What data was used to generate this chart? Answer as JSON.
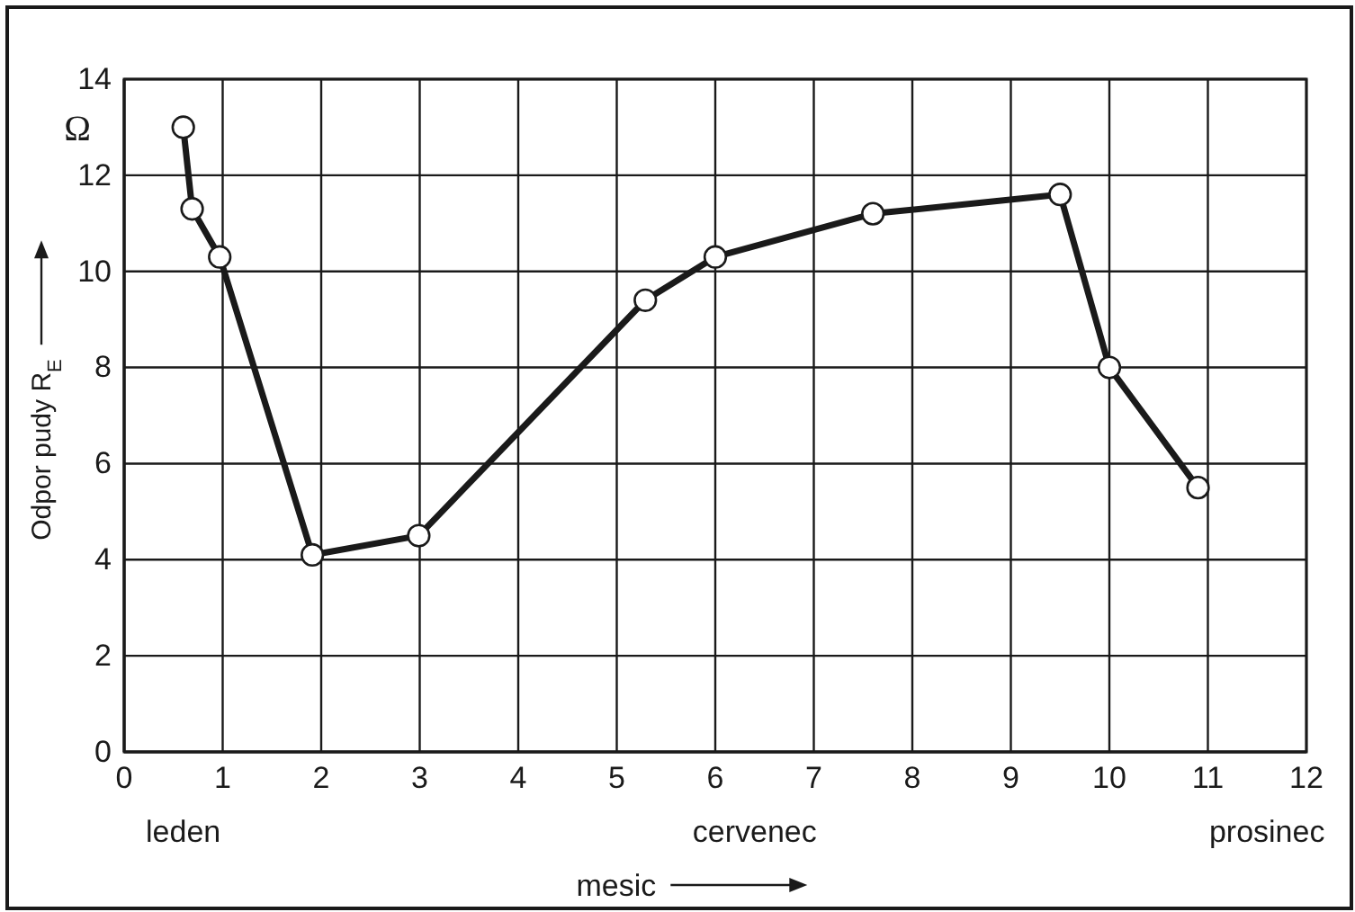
{
  "chart_data": {
    "type": "line",
    "xlabel": "mesic",
    "ylabel": "Odpor pudy R$_{E}$",
    "x": [
      0.6,
      0.69,
      0.97,
      1.91,
      2.99,
      5.29,
      6.0,
      7.6,
      9.5,
      10.0,
      10.9
    ],
    "series": [
      {
        "color": "#1a1a1a",
        "values": [
          13.0,
          11.3,
          10.3,
          4.1,
          4.5,
          9.4,
          10.3,
          11.2,
          11.6,
          8.0,
          5.5
        ]
      }
    ],
    "xlim": [
      0,
      12
    ],
    "xticks": [
      0,
      1,
      2,
      3,
      4,
      5,
      6,
      7,
      8,
      9,
      10,
      11,
      12
    ],
    "ylim": [
      0,
      14
    ],
    "yticks": [
      0,
      2,
      4,
      6,
      8,
      10,
      12,
      14
    ],
    "grid": true,
    "marker": "circle",
    "line_style": "solid",
    "annotations": [
      "Ω",
      "leden",
      "cervenec",
      "prosinec"
    ]
  }
}
